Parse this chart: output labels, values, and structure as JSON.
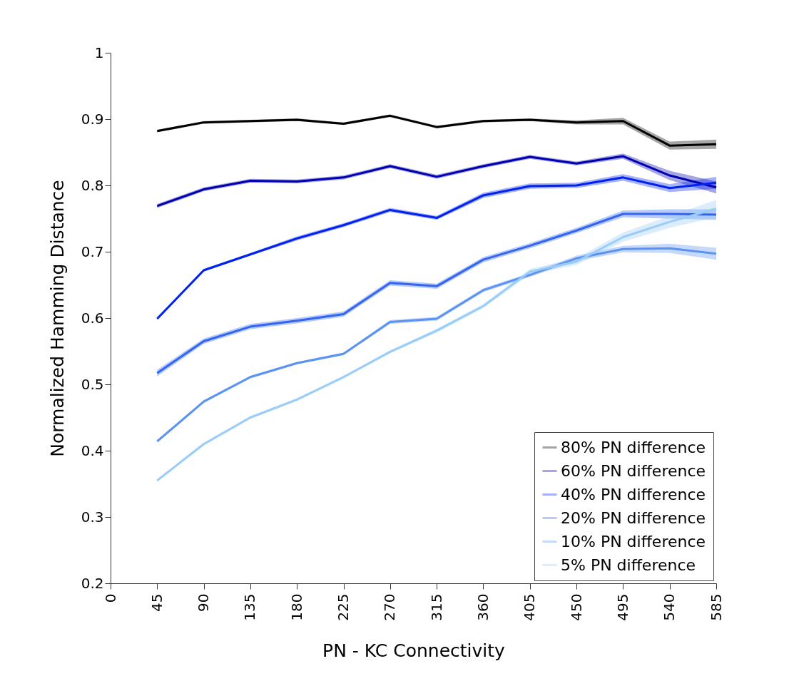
{
  "chart_data": {
    "type": "line",
    "xlabel": "PN - KC Connectivity",
    "ylabel": "Normalized Hamming Distance",
    "x": [
      45,
      90,
      135,
      180,
      225,
      270,
      315,
      360,
      405,
      450,
      495,
      540,
      585
    ],
    "xlim": [
      0,
      585
    ],
    "xticks": [
      0,
      45,
      90,
      135,
      180,
      225,
      270,
      315,
      360,
      405,
      450,
      495,
      540,
      585
    ],
    "ylim": [
      0.2,
      1
    ],
    "yticks": [
      0.2,
      0.3,
      0.4,
      0.5,
      0.6,
      0.7,
      0.8,
      0.9,
      1
    ],
    "grid": false,
    "legend": "bottom right",
    "series": [
      {
        "name": "80% PN difference",
        "color": "#000000",
        "values": [
          0.882,
          0.895,
          0.897,
          0.899,
          0.893,
          0.905,
          0.888,
          0.897,
          0.899,
          0.895,
          0.897,
          0.86,
          0.862
        ],
        "lower": [
          0.88,
          0.893,
          0.895,
          0.897,
          0.891,
          0.903,
          0.886,
          0.895,
          0.897,
          0.892,
          0.892,
          0.854,
          0.855
        ],
        "upper": [
          0.884,
          0.897,
          0.899,
          0.901,
          0.895,
          0.907,
          0.89,
          0.899,
          0.901,
          0.898,
          0.902,
          0.866,
          0.869
        ]
      },
      {
        "name": "60% PN difference",
        "color": "#0000b0",
        "values": [
          0.769,
          0.794,
          0.807,
          0.806,
          0.812,
          0.829,
          0.813,
          0.829,
          0.843,
          0.833,
          0.844,
          0.815,
          0.797
        ],
        "lower": [
          0.766,
          0.791,
          0.804,
          0.803,
          0.809,
          0.826,
          0.81,
          0.826,
          0.84,
          0.83,
          0.84,
          0.808,
          0.788
        ],
        "upper": [
          0.772,
          0.797,
          0.81,
          0.809,
          0.815,
          0.832,
          0.816,
          0.832,
          0.846,
          0.836,
          0.848,
          0.822,
          0.806
        ]
      },
      {
        "name": "40% PN difference",
        "color": "#0022ee",
        "values": [
          0.599,
          0.672,
          0.696,
          0.72,
          0.74,
          0.763,
          0.751,
          0.785,
          0.799,
          0.8,
          0.812,
          0.796,
          0.804
        ],
        "lower": [
          0.597,
          0.67,
          0.694,
          0.717,
          0.737,
          0.76,
          0.748,
          0.781,
          0.795,
          0.796,
          0.807,
          0.79,
          0.795
        ],
        "upper": [
          0.601,
          0.674,
          0.698,
          0.723,
          0.743,
          0.766,
          0.754,
          0.789,
          0.803,
          0.804,
          0.817,
          0.802,
          0.813
        ]
      },
      {
        "name": "20% PN difference",
        "color": "#3366f0",
        "values": [
          0.517,
          0.565,
          0.587,
          0.596,
          0.606,
          0.653,
          0.648,
          0.688,
          0.709,
          0.732,
          0.757,
          0.757,
          0.756
        ],
        "lower": [
          0.512,
          0.561,
          0.583,
          0.592,
          0.602,
          0.649,
          0.644,
          0.684,
          0.705,
          0.728,
          0.752,
          0.75,
          0.748
        ],
        "upper": [
          0.522,
          0.569,
          0.591,
          0.6,
          0.61,
          0.657,
          0.652,
          0.692,
          0.713,
          0.736,
          0.762,
          0.764,
          0.764
        ]
      },
      {
        "name": "10% PN difference",
        "color": "#5c93f0",
        "values": [
          0.414,
          0.474,
          0.511,
          0.532,
          0.546,
          0.594,
          0.599,
          0.642,
          0.665,
          0.69,
          0.704,
          0.705,
          0.697
        ],
        "lower": [
          0.412,
          0.472,
          0.509,
          0.53,
          0.544,
          0.591,
          0.596,
          0.639,
          0.662,
          0.686,
          0.699,
          0.698,
          0.688
        ],
        "upper": [
          0.416,
          0.476,
          0.513,
          0.534,
          0.548,
          0.597,
          0.602,
          0.645,
          0.668,
          0.694,
          0.709,
          0.712,
          0.706
        ]
      },
      {
        "name": "5% PN difference",
        "color": "#99ccf8",
        "values": [
          0.355,
          0.41,
          0.45,
          0.477,
          0.511,
          0.549,
          0.581,
          0.618,
          0.67,
          0.685,
          0.722,
          0.745,
          0.765
        ],
        "lower": [
          0.353,
          0.408,
          0.448,
          0.475,
          0.509,
          0.547,
          0.578,
          0.615,
          0.666,
          0.68,
          0.715,
          0.736,
          0.752
        ],
        "upper": [
          0.357,
          0.412,
          0.452,
          0.479,
          0.513,
          0.551,
          0.584,
          0.621,
          0.674,
          0.69,
          0.729,
          0.754,
          0.778
        ]
      }
    ]
  }
}
